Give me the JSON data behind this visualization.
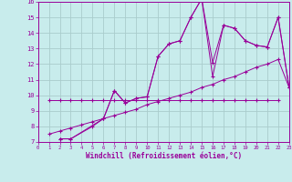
{
  "xlabel": "Windchill (Refroidissement éolien,°C)",
  "xlim": [
    0,
    23
  ],
  "ylim": [
    7,
    16
  ],
  "xticks": [
    0,
    1,
    2,
    3,
    4,
    5,
    6,
    7,
    8,
    9,
    10,
    11,
    12,
    13,
    14,
    15,
    16,
    17,
    18,
    19,
    20,
    21,
    22,
    23
  ],
  "yticks": [
    7,
    8,
    9,
    10,
    11,
    12,
    13,
    14,
    15,
    16
  ],
  "bg_color": "#c8ecec",
  "line_color": "#990099",
  "grid_color": "#aacccc",
  "line1_x": [
    1,
    2,
    3,
    4,
    5,
    6,
    7,
    8,
    9,
    10,
    11,
    12,
    13,
    14,
    15,
    16,
    17,
    18,
    19,
    20,
    21,
    22
  ],
  "line1_y": [
    9.7,
    9.7,
    9.7,
    9.7,
    9.7,
    9.7,
    9.7,
    9.7,
    9.7,
    9.7,
    9.7,
    9.7,
    9.7,
    9.7,
    9.7,
    9.7,
    9.7,
    9.7,
    9.7,
    9.7,
    9.7,
    9.7
  ],
  "line2_x": [
    2,
    3,
    6,
    7,
    8,
    9,
    10,
    11,
    12,
    13,
    14,
    15,
    16,
    17,
    18,
    19,
    20,
    21,
    22,
    23
  ],
  "line2_y": [
    7.2,
    7.2,
    8.5,
    10.3,
    9.5,
    9.8,
    9.9,
    12.5,
    13.3,
    13.5,
    15.0,
    16.2,
    11.2,
    14.5,
    14.3,
    13.5,
    13.2,
    13.1,
    15.0,
    10.5
  ],
  "line3_x": [
    2,
    3,
    5,
    6,
    7,
    8,
    9,
    10,
    11,
    12,
    13,
    14,
    15,
    16,
    17,
    18,
    19,
    20,
    21,
    22,
    23
  ],
  "line3_y": [
    7.2,
    7.2,
    8.0,
    8.5,
    10.3,
    9.5,
    9.8,
    9.9,
    12.5,
    13.3,
    13.5,
    15.0,
    16.2,
    12.1,
    14.5,
    14.3,
    13.5,
    13.2,
    13.1,
    15.0,
    10.5
  ],
  "line4_x": [
    1,
    2,
    3,
    4,
    5,
    6,
    7,
    8,
    9,
    10,
    11,
    12,
    13,
    14,
    15,
    16,
    17,
    18,
    19,
    20,
    21,
    22,
    23
  ],
  "line4_y": [
    7.5,
    7.7,
    7.9,
    8.1,
    8.3,
    8.5,
    8.7,
    8.9,
    9.1,
    9.4,
    9.6,
    9.8,
    10.0,
    10.2,
    10.5,
    10.7,
    11.0,
    11.2,
    11.5,
    11.8,
    12.0,
    12.3,
    10.5
  ]
}
